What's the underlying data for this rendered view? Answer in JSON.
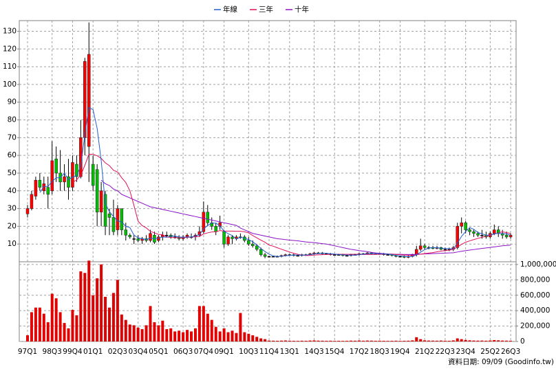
{
  "chart_data": {
    "type": "candlestick",
    "source": "資料日期: 09/09 (Goodinfo.tw)",
    "legend": "top",
    "grid": true,
    "categories": [
      "97Q1",
      null,
      null,
      null,
      null,
      null,
      "98Q3",
      null,
      null,
      null,
      null,
      "99Q4",
      null,
      null,
      null,
      null,
      "01Q1",
      null,
      null,
      null,
      null,
      null,
      "02Q3",
      null,
      null,
      null,
      null,
      "03Q4",
      null,
      null,
      null,
      null,
      "05Q1",
      null,
      null,
      null,
      null,
      null,
      "06Q3",
      null,
      null,
      null,
      null,
      "07Q4",
      null,
      null,
      null,
      null,
      "09Q1",
      null,
      null,
      null,
      null,
      null,
      "10Q3",
      null,
      null,
      null,
      null,
      "11Q4",
      null,
      null,
      null,
      null,
      "13Q1",
      null,
      null,
      null,
      null,
      null,
      "14Q3",
      null,
      null,
      null,
      null,
      "15Q4",
      null,
      null,
      null,
      null,
      null,
      "17Q2",
      null,
      null,
      null,
      null,
      "18Q3",
      null,
      null,
      null,
      null,
      "19Q4",
      null,
      null,
      null,
      null,
      null,
      "21Q2",
      null,
      null,
      null,
      null,
      "22Q3",
      null,
      null,
      null,
      null,
      "23Q4",
      null,
      null,
      null,
      null,
      null,
      "25Q2",
      null,
      null,
      null,
      null,
      "26Q3"
    ],
    "open": [
      27,
      30,
      37,
      46,
      40,
      42,
      40,
      58,
      50,
      45,
      48,
      42,
      55,
      48,
      70,
      65,
      55,
      52,
      28,
      38,
      27,
      25,
      18,
      30,
      18,
      15,
      13,
      13,
      12,
      13,
      12,
      15,
      12,
      14,
      15,
      15,
      14,
      14,
      13,
      14,
      14,
      14,
      15,
      17,
      28,
      22,
      20,
      20,
      17,
      10,
      14,
      13,
      14,
      14,
      12,
      10,
      9,
      7,
      4,
      3,
      3,
      3,
      3,
      3.5,
      4,
      4,
      3.5,
      3.5,
      4,
      4,
      4.5,
      5,
      5,
      4.5,
      4.5,
      4,
      4,
      4,
      3.5,
      3.5,
      4,
      4,
      4.5,
      4.5,
      5,
      4.5,
      4.5,
      4.5,
      4,
      4,
      3.5,
      3,
      3,
      2.5,
      3,
      4,
      7,
      9,
      8,
      8,
      7.5,
      8,
      7,
      7,
      7,
      8,
      20,
      22,
      18,
      17,
      16,
      15,
      15,
      14,
      16,
      18,
      16,
      15,
      14
    ],
    "high": [
      32,
      40,
      48,
      50,
      48,
      48,
      68,
      65,
      63,
      55,
      58,
      60,
      60,
      80,
      115,
      135,
      60,
      55,
      45,
      40,
      30,
      35,
      32,
      30,
      22,
      16,
      15,
      15,
      14,
      15,
      18,
      17,
      15,
      17,
      17,
      16,
      16,
      15,
      15,
      16,
      16,
      16,
      20,
      34,
      32,
      25,
      22,
      26,
      18,
      15,
      15,
      15,
      16,
      15,
      14,
      12,
      10,
      8,
      5,
      3.5,
      3.5,
      3.5,
      4,
      4.5,
      4.5,
      4.5,
      4,
      4.5,
      4.5,
      5,
      5.5,
      5.5,
      5.5,
      5,
      5,
      4.5,
      4.5,
      4.5,
      4,
      4.5,
      4.5,
      5,
      5,
      5.5,
      5.5,
      5,
      5,
      5,
      4.5,
      4.5,
      4,
      3.5,
      3.5,
      3.5,
      4.5,
      9,
      13,
      10,
      9,
      9,
      9,
      8.5,
      8,
      8,
      9,
      22,
      25,
      23,
      19,
      18,
      17,
      18,
      17,
      17,
      21,
      20,
      18,
      17,
      16
    ],
    "low": [
      25,
      29,
      35,
      40,
      38,
      30,
      38,
      45,
      40,
      40,
      35,
      40,
      45,
      47,
      60,
      45,
      40,
      20,
      20,
      15,
      15,
      15,
      15,
      15,
      12,
      13,
      10,
      11,
      10,
      11,
      11,
      10,
      11,
      12,
      14,
      13,
      13,
      12,
      12,
      13,
      13,
      12,
      14,
      16,
      20,
      18,
      15,
      18,
      8,
      9,
      10,
      12,
      13,
      11,
      9,
      8,
      6,
      3,
      2,
      2.5,
      2.5,
      2.5,
      2.5,
      3,
      3.5,
      3,
      3,
      3,
      3.5,
      3.5,
      4,
      4.5,
      4,
      4,
      3.5,
      3.5,
      3.5,
      3,
      3,
      3,
      3.5,
      3.5,
      4,
      4,
      4,
      4,
      4,
      3.5,
      3.5,
      3,
      2.5,
      2.5,
      2,
      2,
      2.5,
      3,
      6,
      7,
      7,
      7,
      7,
      6.5,
      6,
      6,
      6,
      7,
      16,
      16,
      15,
      14,
      14,
      13,
      13,
      13,
      15,
      14,
      13,
      13,
      13
    ],
    "close": [
      30,
      38,
      46,
      42,
      44,
      38,
      57,
      50,
      45,
      48,
      42,
      56,
      48,
      70,
      113,
      117,
      43,
      28,
      40,
      20,
      25,
      17,
      30,
      18,
      15,
      14,
      13,
      12,
      13,
      12,
      16,
      11,
      14,
      15,
      15,
      14,
      14,
      13,
      14,
      15,
      14,
      15,
      17,
      28,
      22,
      20,
      17,
      22,
      10,
      14,
      13,
      14,
      14,
      12,
      10,
      9,
      7,
      4,
      3,
      3,
      3,
      3,
      3.5,
      4,
      4,
      3.5,
      3.5,
      4,
      4,
      4.5,
      5,
      5,
      4.5,
      4.5,
      4,
      4,
      4,
      3.5,
      3.5,
      4,
      4,
      4.5,
      4.5,
      5,
      4.5,
      4.5,
      4.5,
      4,
      4,
      3.5,
      3,
      3,
      2.5,
      3,
      4,
      7,
      9,
      8,
      8,
      7.5,
      8,
      7,
      7,
      7,
      8,
      20,
      22,
      18,
      17,
      16,
      15,
      15,
      14,
      16,
      18,
      16,
      15,
      14,
      15
    ],
    "volume": [
      80000,
      380000,
      440000,
      440000,
      360000,
      250000,
      620000,
      560000,
      380000,
      240000,
      170000,
      410000,
      340000,
      910000,
      890000,
      1050000,
      600000,
      820000,
      1000000,
      580000,
      440000,
      630000,
      800000,
      350000,
      280000,
      220000,
      210000,
      180000,
      160000,
      210000,
      460000,
      250000,
      210000,
      270000,
      160000,
      170000,
      130000,
      140000,
      120000,
      150000,
      130000,
      170000,
      460000,
      460000,
      360000,
      280000,
      190000,
      130000,
      170000,
      120000,
      140000,
      110000,
      370000,
      120000,
      100000,
      80000,
      60000,
      40000,
      30000,
      12000,
      10000,
      9000,
      11000,
      13000,
      10000,
      9000,
      8000,
      10000,
      9000,
      12000,
      14000,
      11000,
      10000,
      9000,
      10000,
      8000,
      9000,
      8000,
      9000,
      11000,
      10000,
      13000,
      10000,
      12000,
      11000,
      9000,
      10000,
      9000,
      8000,
      9000,
      10000,
      8000,
      9000,
      10000,
      14000,
      55000,
      30000,
      15000,
      12000,
      11000,
      10000,
      12000,
      10000,
      9000,
      14000,
      40000,
      30000,
      20000,
      15000,
      12000,
      11000,
      12000,
      10000,
      13000,
      18000,
      15000,
      12000,
      11000,
      10000
    ],
    "up_color": "#ff0000",
    "down_color": "#00c000",
    "volume_color": "#e00000",
    "series": [
      {
        "name": "年線",
        "color": "#1f5fd0",
        "values": [
          null,
          null,
          null,
          39,
          42.5,
          42.5,
          45.3,
          47.3,
          47.5,
          50,
          46.3,
          47.8,
          48.5,
          54,
          71.8,
          87,
          85.8,
          75.3,
          57,
          32.8,
          28.3,
          25.5,
          23,
          22.5,
          20,
          19.3,
          15,
          13.5,
          13,
          12.5,
          13.3,
          13,
          13.3,
          14,
          13.8,
          14.5,
          14.5,
          14,
          13.8,
          14,
          14,
          14.5,
          15.3,
          18.5,
          20.5,
          21.8,
          21.8,
          20.3,
          17.3,
          15.8,
          14.8,
          12.8,
          13.8,
          13.3,
          12.5,
          11.3,
          9.5,
          7.5,
          5.8,
          4.3,
          3.3,
          3,
          3.1,
          3.4,
          3.6,
          3.8,
          3.8,
          3.8,
          3.8,
          4,
          4.4,
          4.6,
          4.8,
          4.8,
          4.5,
          4.3,
          4.1,
          3.9,
          3.8,
          3.8,
          3.8,
          4,
          4.3,
          4.5,
          4.6,
          4.6,
          4.6,
          4.4,
          4.3,
          4,
          3.6,
          3.4,
          3,
          2.9,
          3.1,
          3.9,
          5.4,
          6.8,
          7.7,
          8.1,
          7.9,
          7.6,
          7.5,
          7.3,
          7.3,
          10.5,
          14.3,
          17,
          19.3,
          18.3,
          16.5,
          15.8,
          15,
          15,
          15.8,
          16,
          15.8,
          15.8,
          15
        ]
      },
      {
        "name": "三年",
        "color": "#e0105a",
        "values": [
          null,
          null,
          null,
          null,
          null,
          null,
          null,
          null,
          null,
          null,
          null,
          44.7,
          46.2,
          48.8,
          54.4,
          60.7,
          60.6,
          59.8,
          58.3,
          55.8,
          54.2,
          51.6,
          50.6,
          47.4,
          44.7,
          40,
          31.7,
          22.9,
          20.4,
          19.1,
          17.1,
          16.3,
          15.4,
          15.3,
          14,
          13.7,
          13.6,
          13.5,
          13.6,
          13.8,
          13.9,
          14.2,
          14.3,
          15.7,
          16.3,
          16.8,
          16.9,
          17.6,
          17.3,
          17.3,
          17.3,
          17.2,
          17.2,
          16.9,
          16.3,
          14.8,
          13.5,
          12.2,
          11,
          9.4,
          8.8,
          7.9,
          7.1,
          6.3,
          5.5,
          4.8,
          4.2,
          3.8,
          3.5,
          3.6,
          3.8,
          3.9,
          4,
          4.1,
          4.2,
          4.2,
          4.2,
          4.2,
          4.2,
          4.2,
          4.2,
          4.2,
          4.1,
          4.1,
          4.1,
          4.2,
          4.2,
          4.3,
          4.3,
          4.2,
          4.1,
          4,
          3.8,
          3.7,
          3.6,
          3.9,
          4.3,
          4.6,
          4.9,
          5.2,
          5.6,
          6,
          6.3,
          6.6,
          7,
          8.3,
          9.8,
          11,
          11.8,
          12.5,
          13.2,
          13.8,
          14.4,
          15,
          15.6,
          16.3,
          16.9,
          16.4,
          16
        ]
      },
      {
        "name": "十年",
        "color": "#8a10c8",
        "values": [
          null,
          null,
          null,
          null,
          null,
          null,
          null,
          null,
          null,
          null,
          null,
          null,
          null,
          null,
          null,
          null,
          null,
          null,
          46,
          44,
          43,
          41,
          40,
          38,
          37,
          36,
          35,
          34,
          33,
          32,
          31,
          30.5,
          30,
          29.5,
          29,
          28.5,
          28,
          27.5,
          27,
          26.5,
          26,
          25.5,
          25,
          24.5,
          24,
          23.5,
          23,
          22.5,
          22,
          21.5,
          21,
          20.5,
          19,
          18,
          17,
          16,
          15.5,
          15,
          14.5,
          14,
          13.5,
          13,
          12.8,
          12.5,
          12.2,
          12,
          11.8,
          11.5,
          11.2,
          11,
          10.8,
          10.5,
          10.2,
          10,
          9.5,
          9,
          8.5,
          8,
          7.5,
          7,
          6.7,
          6.3,
          6,
          5.7,
          5.3,
          5,
          4.8,
          4.6,
          4.4,
          4.3,
          4.2,
          4.2,
          4.1,
          4.1,
          4.1,
          4.2,
          4.3,
          4.4,
          4.5,
          4.6,
          4.7,
          4.8,
          4.9,
          5,
          5.1,
          5.5,
          5.9,
          6.3,
          6.6,
          6.9,
          7.2,
          7.5,
          7.8,
          8.1,
          8.4,
          8.7,
          9,
          9.2,
          9.4
        ]
      }
    ],
    "ylim": [
      0,
      136
    ],
    "yticks": [
      10,
      20,
      30,
      40,
      50,
      60,
      70,
      80,
      90,
      100,
      110,
      120,
      130
    ],
    "y2lim": [
      0,
      1035000
    ],
    "y2ticks": [
      {
        "value": 0,
        "label": "0"
      },
      {
        "value": 200000,
        "label": "200,000"
      },
      {
        "value": 400000,
        "label": "400,000"
      },
      {
        "value": 600000,
        "label": "600,000"
      },
      {
        "value": 800000,
        "label": "800,000"
      },
      {
        "value": 1000000,
        "label": "1,000,000"
      }
    ]
  }
}
